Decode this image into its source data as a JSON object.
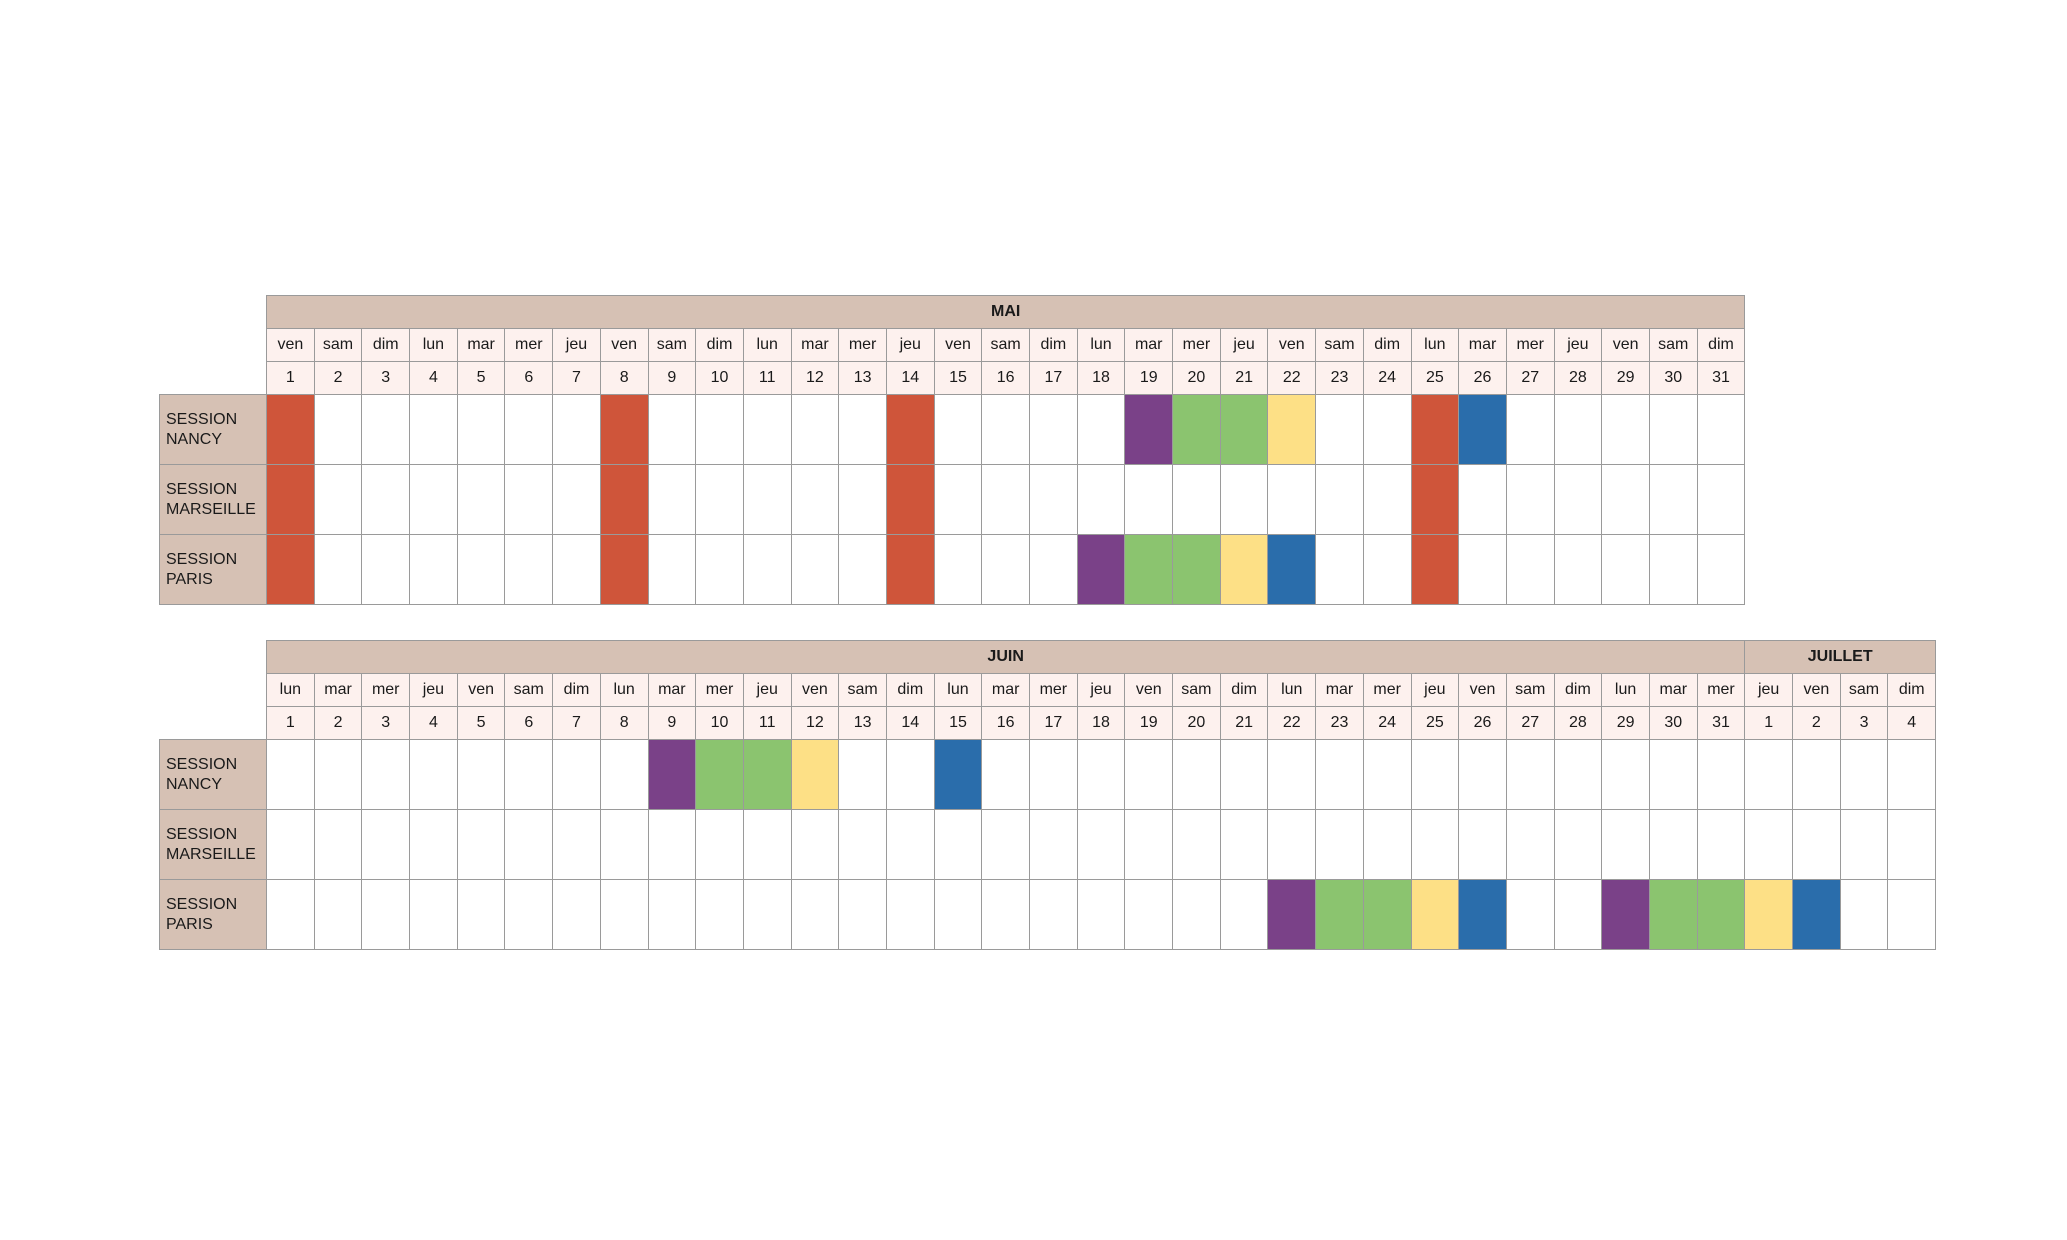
{
  "calendar1": {
    "months": [
      {
        "label": "MAI",
        "span": 31
      }
    ],
    "weekdays": [
      "ven",
      "sam",
      "dim",
      "lun",
      "mar",
      "mer",
      "jeu",
      "ven",
      "sam",
      "dim",
      "lun",
      "mar",
      "mer",
      "jeu",
      "ven",
      "sam",
      "dim",
      "lun",
      "mar",
      "mer",
      "jeu",
      "ven",
      "sam",
      "dim",
      "lun",
      "mar",
      "mer",
      "jeu",
      "ven",
      "sam",
      "dim"
    ],
    "days": [
      "1",
      "2",
      "3",
      "4",
      "5",
      "6",
      "7",
      "8",
      "9",
      "10",
      "11",
      "12",
      "13",
      "14",
      "15",
      "16",
      "17",
      "18",
      "19",
      "20",
      "21",
      "22",
      "23",
      "24",
      "25",
      "26",
      "27",
      "28",
      "29",
      "30",
      "31"
    ],
    "sessions": [
      {
        "label": [
          "SESSION",
          "NANCY"
        ],
        "marks": {
          "1": "red",
          "8": "red",
          "14": "red",
          "19": "purple",
          "20": "green",
          "21": "green",
          "22": "yellow",
          "25": "red",
          "26": "blue"
        }
      },
      {
        "label": [
          "SESSION",
          "MARSEILLE"
        ],
        "marks": {
          "1": "red",
          "8": "red",
          "14": "red",
          "25": "red"
        }
      },
      {
        "label": [
          "SESSION",
          "PARIS"
        ],
        "marks": {
          "1": "red",
          "8": "red",
          "14": "red",
          "18": "purple",
          "19": "green",
          "20": "green",
          "21": "yellow",
          "22": "blue",
          "25": "red"
        }
      }
    ]
  },
  "calendar2": {
    "months": [
      {
        "label": "JUIN",
        "span": 31
      },
      {
        "label": "JUILLET",
        "span": 4
      }
    ],
    "weekdays": [
      "lun",
      "mar",
      "mer",
      "jeu",
      "ven",
      "sam",
      "dim",
      "lun",
      "mar",
      "mer",
      "jeu",
      "ven",
      "sam",
      "dim",
      "lun",
      "mar",
      "mer",
      "jeu",
      "ven",
      "sam",
      "dim",
      "lun",
      "mar",
      "mer",
      "jeu",
      "ven",
      "sam",
      "dim",
      "lun",
      "mar",
      "mer",
      "jeu",
      "ven",
      "sam",
      "dim"
    ],
    "days": [
      "1",
      "2",
      "3",
      "4",
      "5",
      "6",
      "7",
      "8",
      "9",
      "10",
      "11",
      "12",
      "13",
      "14",
      "15",
      "16",
      "17",
      "18",
      "19",
      "20",
      "21",
      "22",
      "23",
      "24",
      "25",
      "26",
      "27",
      "28",
      "29",
      "30",
      "31",
      "1",
      "2",
      "3",
      "4"
    ],
    "sessions": [
      {
        "label": [
          "SESSION",
          "NANCY"
        ],
        "marks": {
          "9": "purple",
          "10": "green",
          "11": "green",
          "12": "yellow",
          "15": "blue"
        }
      },
      {
        "label": [
          "SESSION",
          "MARSEILLE"
        ],
        "marks": {}
      },
      {
        "label": [
          "SESSION",
          "PARIS"
        ],
        "marks": {
          "22": "purple",
          "23": "green",
          "24": "green",
          "25": "yellow",
          "26": "blue",
          "29": "purple",
          "30": "green",
          "31": "green",
          "32": "yellow",
          "33": "blue"
        }
      }
    ]
  },
  "colors": {
    "red": "#cf553a",
    "purple": "#7a4188",
    "green": "#8bc46f",
    "yellow": "#fde086",
    "blue": "#2a6dab",
    "header": "#d6c1b4",
    "day_header": "#fdf1ee"
  }
}
